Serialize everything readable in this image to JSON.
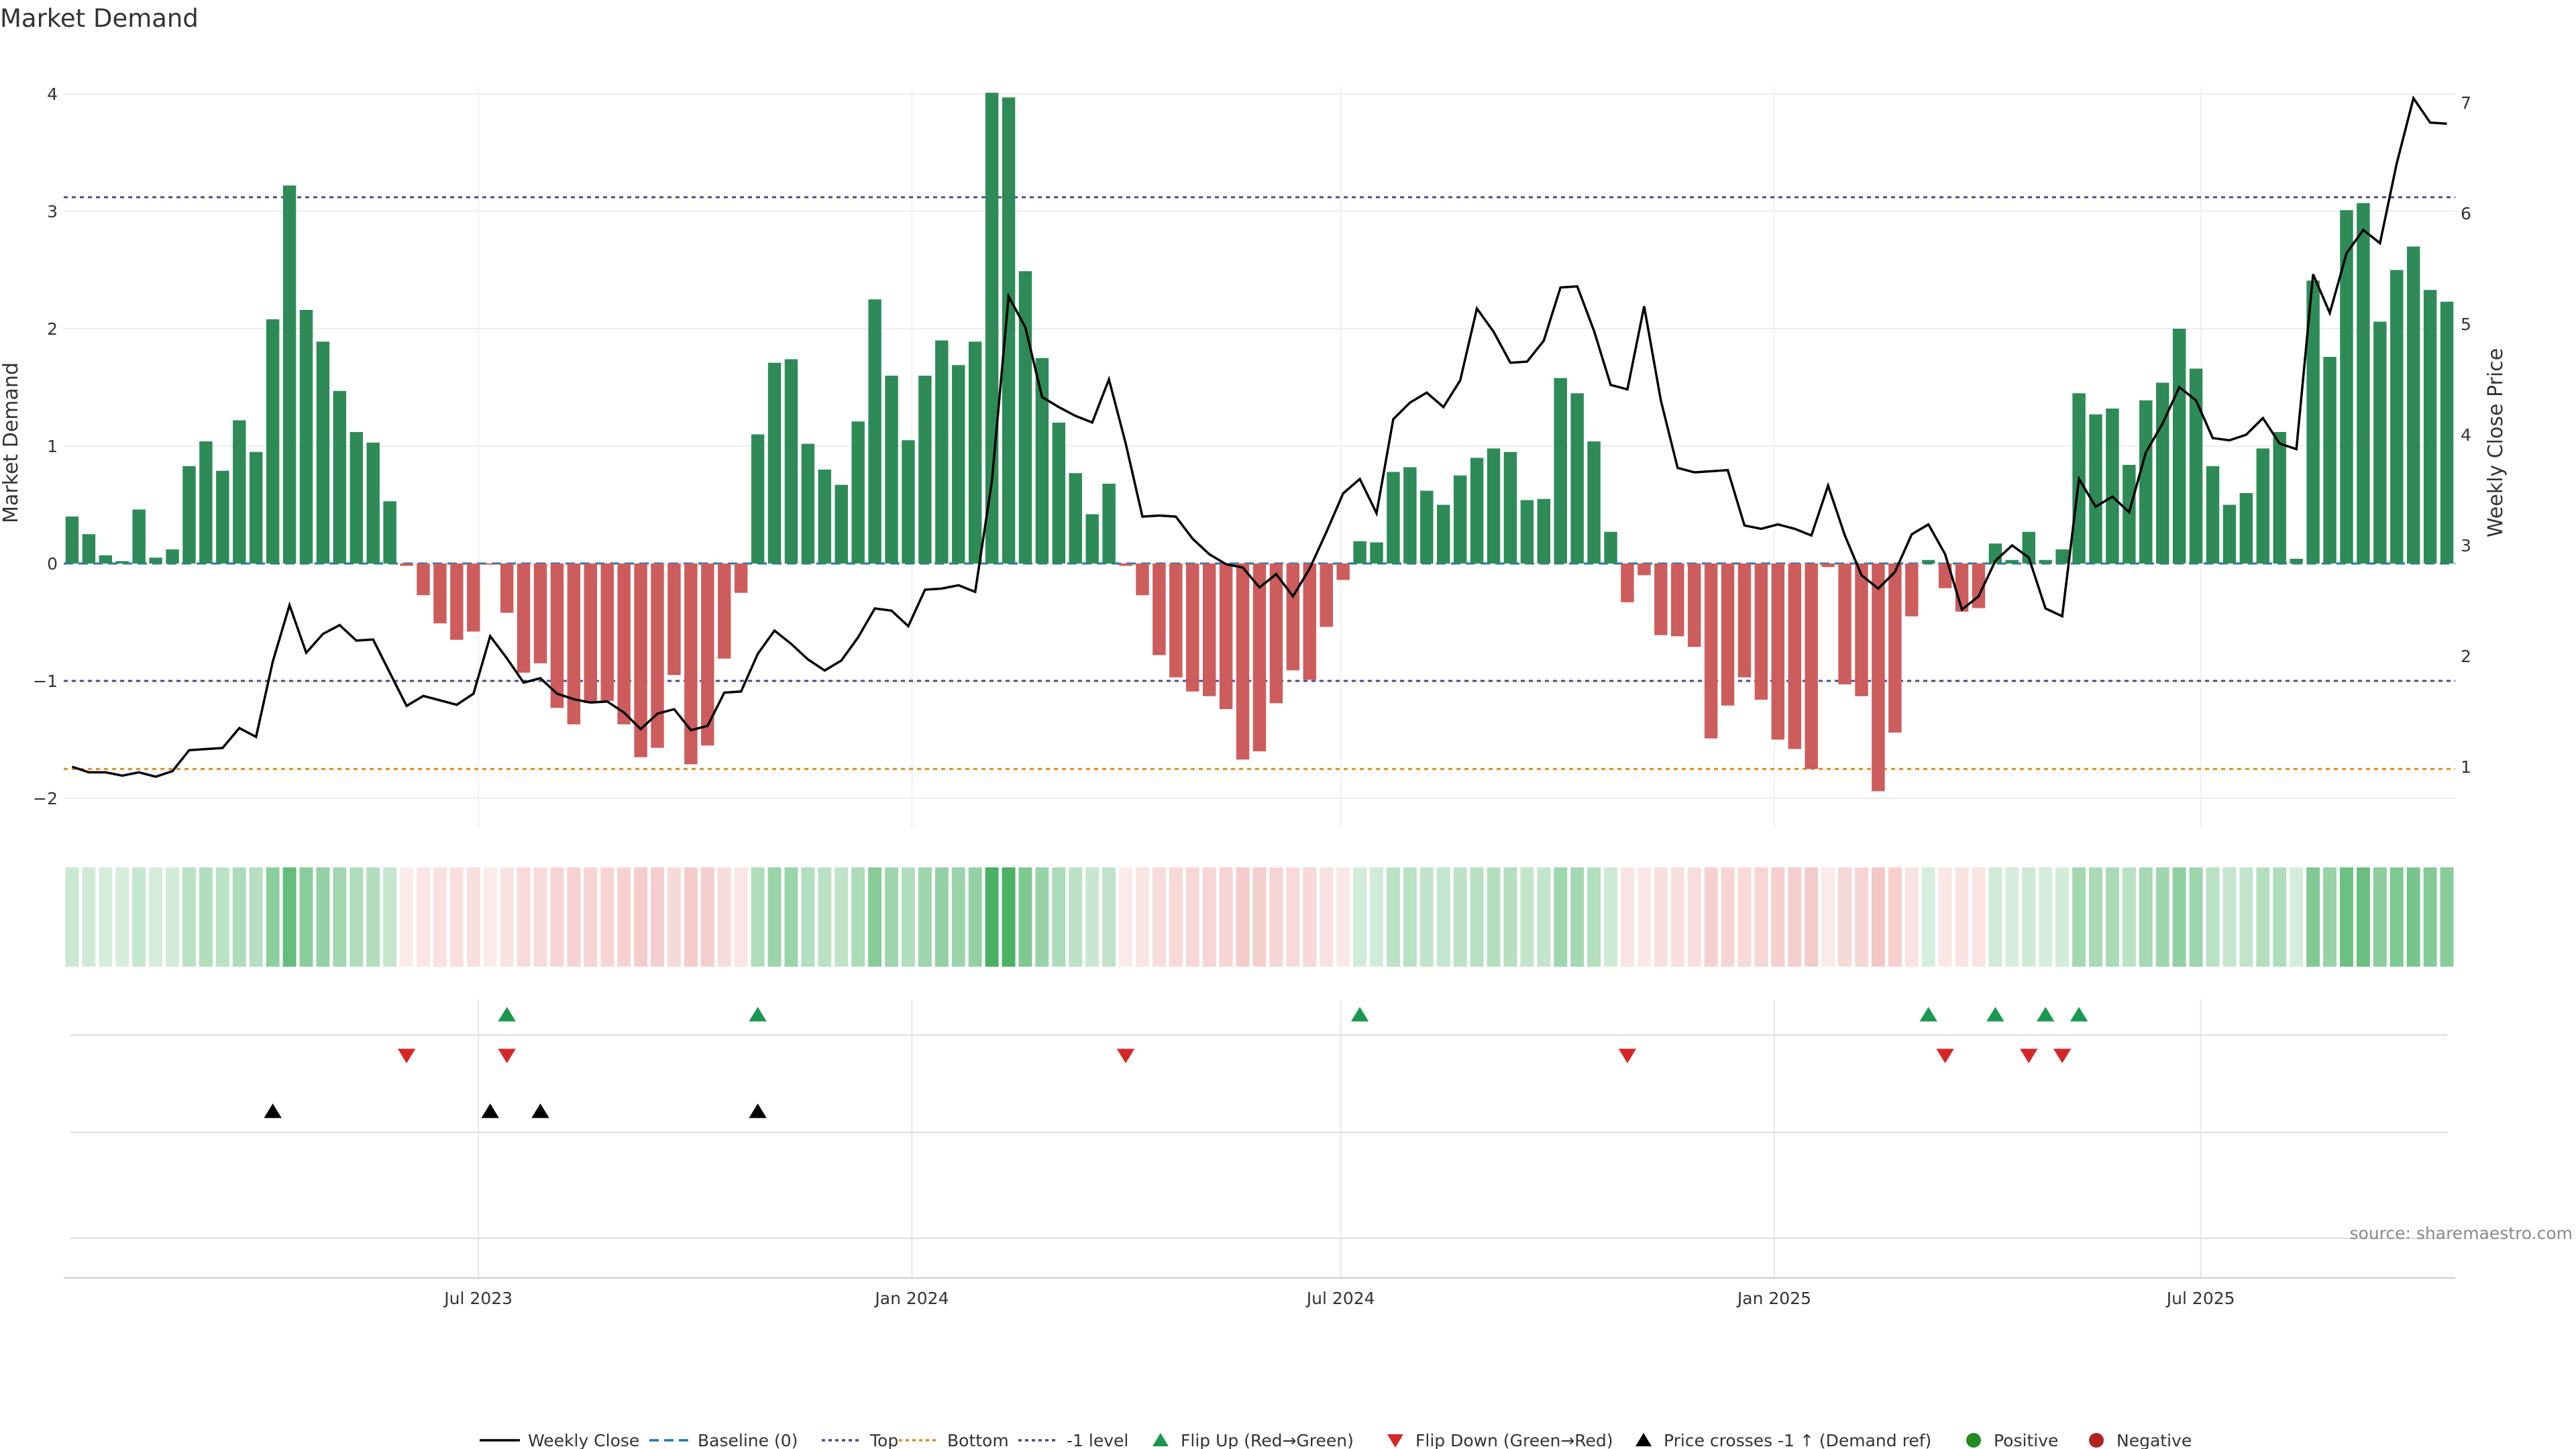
{
  "chart_data": {
    "type": "bar",
    "title": "Market Demand",
    "ylabel": "Market Demand",
    "y2label": "Weekly Close Price",
    "ylim": [
      -2.2,
      4.2
    ],
    "y2lim": [
      0.5,
      7.25
    ],
    "yticks": [
      -2,
      -1,
      0,
      1,
      2,
      3,
      4
    ],
    "y2ticks": [
      1,
      2,
      3,
      4,
      5,
      6,
      7
    ],
    "x_start": "2023-01-06",
    "x_end": "2025-10-17",
    "xticks": [
      {
        "date": "2023-07-01",
        "label": "Jul 2023"
      },
      {
        "date": "2024-01-01",
        "label": "Jan 2024"
      },
      {
        "date": "2024-07-01",
        "label": "Jul 2024"
      },
      {
        "date": "2025-01-01",
        "label": "Jan 2025"
      },
      {
        "date": "2025-07-01",
        "label": "Jul 2025"
      }
    ],
    "levels": {
      "top": 3.12,
      "bottom": -1.75,
      "minus_one": -1.0,
      "baseline": 0
    },
    "demand": [
      0.4,
      0.25,
      0.07,
      0.02,
      0.46,
      0.05,
      0.12,
      0.83,
      1.04,
      0.79,
      1.22,
      0.95,
      2.08,
      3.22,
      2.16,
      1.89,
      1.47,
      1.12,
      1.03,
      0.53,
      -0.02,
      -0.27,
      -0.51,
      -0.65,
      -0.58,
      -0.01,
      -0.42,
      -0.93,
      -0.85,
      -1.23,
      -1.37,
      -1.19,
      -1.17,
      -1.37,
      -1.65,
      -1.57,
      -0.95,
      -1.71,
      -1.55,
      -0.81,
      -0.25,
      1.1,
      1.71,
      1.74,
      1.02,
      0.8,
      0.67,
      1.21,
      2.25,
      1.6,
      1.05,
      1.6,
      1.9,
      1.69,
      1.89,
      4.01,
      3.97,
      2.49,
      1.75,
      1.2,
      0.77,
      0.42,
      0.68,
      -0.02,
      -0.27,
      -0.78,
      -0.97,
      -1.09,
      -1.13,
      -1.24,
      -1.67,
      -1.6,
      -1.19,
      -0.91,
      -0.99,
      -0.54,
      -0.14,
      0.19,
      0.18,
      0.78,
      0.82,
      0.62,
      0.5,
      0.75,
      0.9,
      0.98,
      0.95,
      0.54,
      0.55,
      1.58,
      1.45,
      1.04,
      0.27,
      -0.33,
      -0.1,
      -0.61,
      -0.62,
      -0.71,
      -1.49,
      -1.21,
      -0.97,
      -1.16,
      -1.5,
      -1.58,
      -1.75,
      -0.03,
      -1.03,
      -1.13,
      -1.94,
      -1.44,
      -0.45,
      0.03,
      -0.21,
      -0.41,
      -0.38,
      0.17,
      0.03,
      0.27,
      0.03,
      0.12,
      1.45,
      1.27,
      1.32,
      0.84,
      1.39,
      1.54,
      2.0,
      1.66,
      0.83,
      0.5,
      0.6,
      0.98,
      1.12,
      0.04,
      2.41,
      1.76,
      3.01,
      3.07,
      2.06,
      2.5,
      2.7,
      2.33,
      2.23
    ],
    "close": [
      1.0,
      0.95,
      0.95,
      0.92,
      0.95,
      0.91,
      0.96,
      1.15,
      1.16,
      1.17,
      1.35,
      1.27,
      1.95,
      2.46,
      2.03,
      2.2,
      2.28,
      2.14,
      2.15,
      1.85,
      1.55,
      1.64,
      1.6,
      1.56,
      1.66,
      2.18,
      1.98,
      1.76,
      1.8,
      1.66,
      1.61,
      1.58,
      1.59,
      1.49,
      1.34,
      1.48,
      1.52,
      1.33,
      1.37,
      1.67,
      1.68,
      2.02,
      2.23,
      2.11,
      1.97,
      1.87,
      1.96,
      2.17,
      2.43,
      2.41,
      2.27,
      2.6,
      2.61,
      2.64,
      2.58,
      3.58,
      5.25,
      4.97,
      4.34,
      4.25,
      4.17,
      4.11,
      4.5,
      3.92,
      3.26,
      3.27,
      3.26,
      3.06,
      2.92,
      2.83,
      2.8,
      2.62,
      2.74,
      2.54,
      2.79,
      3.12,
      3.47,
      3.6,
      3.29,
      4.14,
      4.29,
      4.38,
      4.25,
      4.49,
      5.14,
      4.93,
      4.65,
      4.66,
      4.85,
      5.33,
      5.34,
      4.94,
      4.45,
      4.41,
      5.16,
      4.31,
      3.7,
      3.66,
      3.67,
      3.68,
      3.18,
      3.15,
      3.19,
      3.15,
      3.09,
      3.54,
      3.09,
      2.73,
      2.61,
      2.76,
      3.1,
      3.19,
      2.92,
      2.42,
      2.54,
      2.86,
      3.0,
      2.89,
      2.43,
      2.36,
      3.6,
      3.35,
      3.44,
      3.3,
      3.84,
      4.1,
      4.43,
      4.31,
      3.97,
      3.95,
      4.0,
      4.15,
      3.92,
      3.87,
      5.45,
      5.1,
      5.64,
      5.85,
      5.73,
      6.45,
      7.04,
      6.82,
      6.81
    ],
    "annotations": {
      "flip_up": [
        26,
        41,
        77,
        111,
        115,
        118,
        120
      ],
      "flip_down": [
        20,
        26,
        63,
        93,
        112,
        117,
        119
      ],
      "price_cross_up": [
        12,
        25,
        28,
        41
      ]
    },
    "legend": [
      "Weekly Close",
      "Baseline (0)",
      "Top",
      "Bottom",
      "-1 level",
      "Flip Up (Red→Green)",
      "Flip Down (Green→Red)",
      "Price crosses -1 ↑ (Demand ref)",
      "Positive",
      "Negative"
    ],
    "source": "source: sharemaestro.com",
    "colors": {
      "positive": "#2e8b57",
      "negative": "#cd5c5c",
      "close": "#000000",
      "top": "#4a4a8a",
      "bottom": "#e08a1e",
      "minus_one": "#4a4a8a",
      "baseline": "#1f77b4",
      "flip_up": "#1a9850",
      "flip_down": "#d62728",
      "cross": "#000000",
      "legend_positive": "#228b22",
      "legend_negative": "#b22222"
    }
  }
}
